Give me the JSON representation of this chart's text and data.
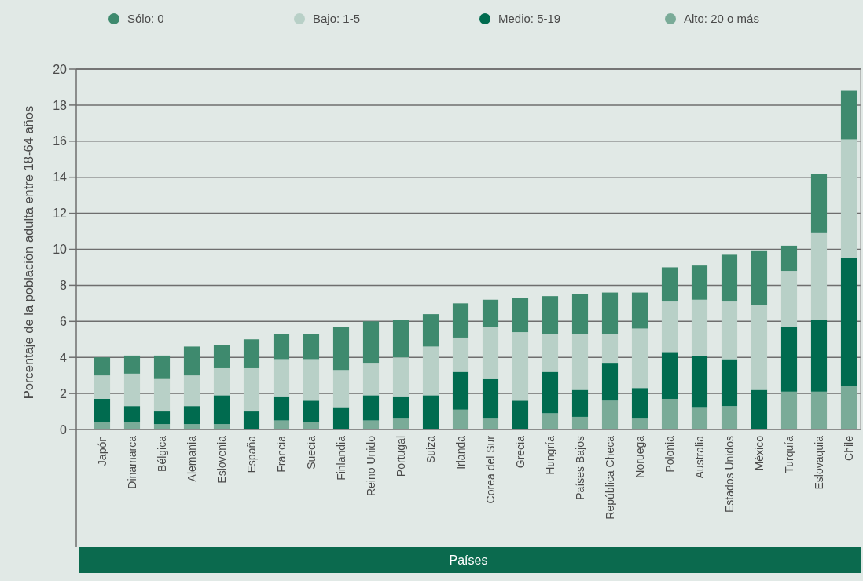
{
  "chart_data": {
    "type": "bar",
    "stacked": true,
    "ylabel": "Porcentaje de la población adulta entre 18-64 años",
    "xlabel": "Países",
    "categories": [
      "Japón",
      "Dinamarca",
      "Bélgica",
      "Alemania",
      "Eslovenia",
      "España",
      "Francia",
      "Suecia",
      "Finlandia",
      "Reino Unido",
      "Portugal",
      "Suiza",
      "Irlanda",
      "Corea del Sur",
      "Grecia",
      "Hungría",
      "Países Bajos",
      "República Checa",
      "Noruega",
      "Polonia",
      "Australia",
      "Estados Unidos",
      "México",
      "Turquía",
      "Eslovaquia",
      "Chile"
    ],
    "series": [
      {
        "name": "Alto: 20 o más",
        "color": "#7aab98",
        "values": [
          0.4,
          0.4,
          0.3,
          0.3,
          0.3,
          0,
          0.5,
          0.4,
          0,
          0.5,
          0.6,
          0,
          1.1,
          0.6,
          0,
          0.9,
          0.7,
          1.6,
          0.6,
          1.7,
          1.2,
          1.3,
          0,
          2.1,
          2.1,
          2.4
        ]
      },
      {
        "name": "Medio: 5-19",
        "color": "#006b4f",
        "values": [
          1.3,
          0.9,
          0.7,
          1.0,
          1.6,
          1.0,
          1.3,
          1.2,
          1.2,
          1.4,
          1.2,
          1.9,
          2.1,
          2.2,
          1.6,
          2.3,
          1.5,
          2.1,
          1.7,
          2.6,
          2.9,
          2.6,
          2.2,
          3.6,
          4.0,
          7.1
        ]
      },
      {
        "name": "Bajo: 1-5",
        "color": "#b8d0c7",
        "values": [
          1.3,
          1.8,
          1.8,
          1.7,
          1.5,
          2.4,
          2.1,
          2.3,
          2.1,
          1.8,
          2.2,
          2.7,
          1.9,
          2.9,
          3.8,
          2.1,
          3.1,
          1.6,
          3.3,
          2.8,
          3.1,
          3.2,
          4.7,
          3.1,
          4.8,
          6.6
        ]
      },
      {
        "name": "Sólo: 0",
        "color": "#3e8a6e",
        "values": [
          1.0,
          1.0,
          1.3,
          1.6,
          1.3,
          1.6,
          1.4,
          1.4,
          2.4,
          2.3,
          2.1,
          1.8,
          1.9,
          1.5,
          1.9,
          2.1,
          2.2,
          2.3,
          2.0,
          1.9,
          1.9,
          2.6,
          3.0,
          1.4,
          3.3,
          2.7
        ]
      }
    ],
    "ylim": [
      0,
      20
    ],
    "yticks": [
      0,
      2,
      4,
      6,
      8,
      10,
      12,
      14,
      16,
      18,
      20
    ],
    "grid": "y",
    "legend": "top"
  }
}
